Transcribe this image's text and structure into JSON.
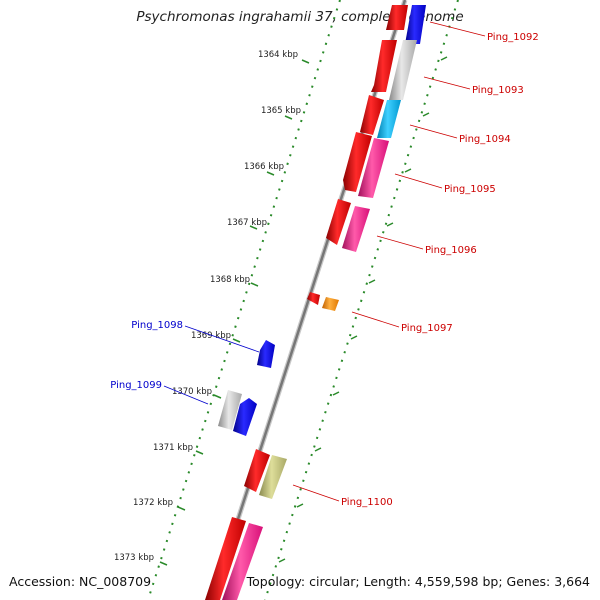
{
  "map": {
    "title": "Psychromonas ingrahamii 37, complete genome",
    "accession": "Accession: NC_008709",
    "topology": "Topology: circular; Length: 4,559,598 bp; Genes: 3,664",
    "colors": {
      "backbone": "#8c8c8c",
      "ticks": "#2a8a2a",
      "tick_label_line": "#2a8a2a",
      "forward_label": "#cc0000",
      "reverse_label": "#0000cc",
      "red": "#ee0000",
      "magenta": "#ff1493",
      "blue": "#0000ee",
      "gray": "#b4b4b4",
      "cyan": "#00b4ee",
      "orange": "#ff8c00",
      "olive": "#b4b46e"
    },
    "kbp_ticks": [
      "1364 kbp",
      "1365 kbp",
      "1366 kbp",
      "1367 kbp",
      "1368 kbp",
      "1369 kbp",
      "1370 kbp",
      "1371 kbp",
      "1372 kbp",
      "1373 kbp"
    ],
    "forward_genes": [
      "Ping_1092",
      "Ping_1093",
      "Ping_1094",
      "Ping_1095",
      "Ping_1096",
      "Ping_1097",
      "Ping_1100"
    ],
    "reverse_genes": [
      "Ping_1098",
      "Ping_1099"
    ]
  }
}
